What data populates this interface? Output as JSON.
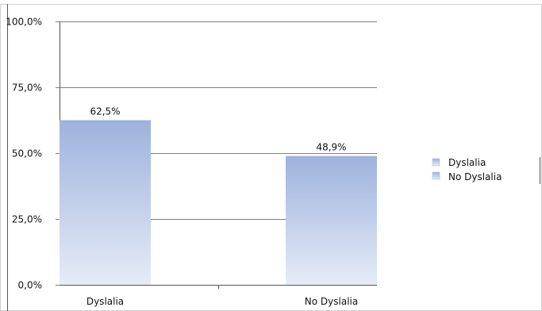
{
  "chart_data": {
    "type": "bar",
    "title": "",
    "xlabel": "",
    "ylabel": "",
    "categories": [
      "Dyslalia",
      "No Dyslalia"
    ],
    "series": [
      {
        "name": "Dyslalia",
        "values": [
          62.5,
          null
        ],
        "label": "62,5%"
      },
      {
        "name": "No Dyslalia",
        "values": [
          null,
          48.9
        ],
        "label": "48,9%"
      }
    ],
    "data_labels": [
      "62,5%",
      "48,9%"
    ],
    "ylim": [
      0,
      100
    ],
    "yticks": [
      0,
      25,
      50,
      75,
      100
    ],
    "ytick_labels": [
      "0,0%",
      "25,0%",
      "50,0%",
      "75,0%",
      "100,0%"
    ],
    "grid": true,
    "legend": {
      "placement": "right",
      "entries": [
        "Dyslalia",
        "No Dyslalia"
      ]
    },
    "colors": {
      "bar_top": "#9db2dd",
      "bar_bottom": "#e6ecf7",
      "grid": "#808080",
      "frame": "#c8c8c8"
    }
  }
}
